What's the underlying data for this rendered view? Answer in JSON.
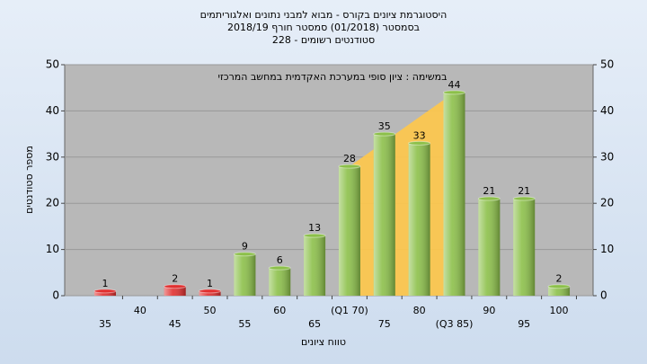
{
  "chart_data": {
    "type": "bar",
    "title": [
      "היסטוגרמת ציונים בקורס - מבוא למבני נתונים ואלגוריתמים",
      "בסמסטר (01/2018) סמסטר חורף 2018/19",
      "סטודנטים רשומים - 228"
    ],
    "annotation": "במשימה : ציון סופי במערכת האקדמית במחשב המרכזי",
    "x_label": "טווח ציונים",
    "y_label": "מספר סטודנטים",
    "categories": [
      "35",
      "40",
      "45",
      "50",
      "55",
      "60",
      "65",
      "(Q1 70)",
      "75",
      "80",
      "(Q3 85)",
      "90",
      "95",
      "100"
    ],
    "values": [
      1,
      null,
      2,
      1,
      9,
      6,
      13,
      28,
      35,
      33,
      44,
      21,
      21,
      2
    ],
    "colors": [
      "#e03030",
      null,
      "#e03030",
      "#e03030",
      "#8cc04a",
      "#8cc04a",
      "#8cc04a",
      "#8cc04a",
      "#8cc04a",
      "#8cc04a",
      "#8cc04a",
      "#8cc04a",
      "#8cc04a",
      "#8cc04a"
    ],
    "ylim": [
      0,
      50
    ],
    "yticks": [
      0,
      10,
      20,
      30,
      40,
      50
    ],
    "y2lim": [
      0,
      50
    ],
    "y2ticks": [
      0,
      10,
      20,
      30,
      40,
      50
    ],
    "grid": true
  }
}
